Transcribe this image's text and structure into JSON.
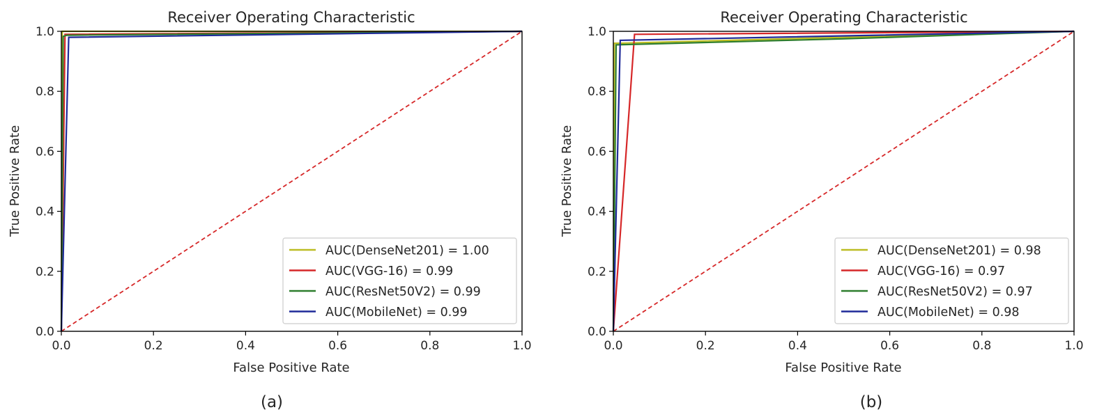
{
  "chart_data": [
    {
      "type": "line",
      "title": "Receiver Operating Characteristic",
      "xlabel": "False Positive Rate",
      "ylabel": "True Positive Rate",
      "caption": "(a)",
      "xlim": [
        0,
        1
      ],
      "ylim": [
        0,
        1
      ],
      "xticks": [
        "0.0",
        "0.2",
        "0.4",
        "0.6",
        "0.8",
        "1.0"
      ],
      "yticks": [
        "0.0",
        "0.2",
        "0.4",
        "0.6",
        "0.8",
        "1.0"
      ],
      "grid": false,
      "legend_position": "lower-right",
      "series": [
        {
          "name": "AUC(DenseNet201) = 1.00",
          "color": "#bcbd22",
          "x": [
            0,
            0.002,
            1
          ],
          "y": [
            0,
            1.0,
            1.0
          ]
        },
        {
          "name": "AUC(VGG-16) = 0.99",
          "color": "#d62728",
          "x": [
            0,
            0.008,
            1
          ],
          "y": [
            0,
            0.99,
            1.0
          ]
        },
        {
          "name": "AUC(ResNet50V2) = 0.99",
          "color": "#2d7d2d",
          "x": [
            0,
            0.004,
            0.012,
            1
          ],
          "y": [
            0,
            0.983,
            0.987,
            1.0
          ]
        },
        {
          "name": "AUC(MobileNet) = 0.99",
          "color": "#1f2a99",
          "x": [
            0,
            0.016,
            1
          ],
          "y": [
            0,
            0.98,
            1.0
          ]
        },
        {
          "name": "",
          "color": "#d62728",
          "dashed": true,
          "x": [
            0,
            1
          ],
          "y": [
            0,
            1
          ]
        }
      ]
    },
    {
      "type": "line",
      "title": "Receiver Operating Characteristic",
      "xlabel": "False Positive Rate",
      "ylabel": "True Positive Rate",
      "caption": "(b)",
      "xlim": [
        0,
        1
      ],
      "ylim": [
        0,
        1
      ],
      "xticks": [
        "0.0",
        "0.2",
        "0.4",
        "0.6",
        "0.8",
        "1.0"
      ],
      "yticks": [
        "0.0",
        "0.2",
        "0.4",
        "0.6",
        "0.8",
        "1.0"
      ],
      "grid": false,
      "legend_position": "lower-right",
      "series": [
        {
          "name": "AUC(DenseNet201) = 0.98",
          "color": "#bcbd22",
          "x": [
            0,
            0.002,
            1
          ],
          "y": [
            0,
            0.96,
            1.0
          ]
        },
        {
          "name": "AUC(VGG-16) = 0.97",
          "color": "#d62728",
          "x": [
            0,
            0.046,
            1
          ],
          "y": [
            0,
            0.99,
            1.0
          ]
        },
        {
          "name": "AUC(ResNet50V2) = 0.97",
          "color": "#2d7d2d",
          "x": [
            0,
            0.006,
            0.5,
            1
          ],
          "y": [
            0,
            0.955,
            0.975,
            1.0
          ]
        },
        {
          "name": "AUC(MobileNet) = 0.98",
          "color": "#1f2a99",
          "x": [
            0,
            0.015,
            1
          ],
          "y": [
            0,
            0.97,
            1.0
          ]
        },
        {
          "name": "",
          "color": "#d62728",
          "dashed": true,
          "x": [
            0,
            1
          ],
          "y": [
            0,
            1
          ]
        }
      ]
    }
  ]
}
